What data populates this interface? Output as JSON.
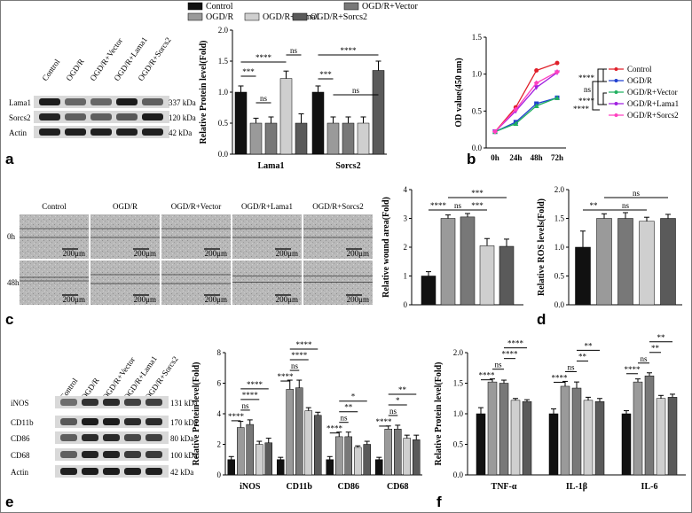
{
  "panel_labels": {
    "a": "a",
    "b": "b",
    "c": "c",
    "d": "d",
    "e": "e",
    "f": "f"
  },
  "conditions": [
    "Control",
    "OGD/R",
    "OGD/R+Vector",
    "OGD/R+Lama1",
    "OGD/R+Sorcs2"
  ],
  "legend_a": [
    "Control",
    "OGD/R",
    "OGD/R+Lama1",
    "OGD/R+Sorcs2",
    "OGD/R+Vector"
  ],
  "blot_a": {
    "rows": [
      {
        "name": "Lama1",
        "kda": "337 kDa"
      },
      {
        "name": "Sorcs2",
        "kda": "120 kDa"
      },
      {
        "name": "Actin",
        "kda": "42 kDa"
      }
    ]
  },
  "blot_e": {
    "rows": [
      {
        "name": "iNOS",
        "kda": "131 kDa"
      },
      {
        "name": "CD11b",
        "kda": "170 kDa"
      },
      {
        "name": "CD86",
        "kda": "80 kDa"
      },
      {
        "name": "CD68",
        "kda": "100 kDa"
      },
      {
        "name": "Actin",
        "kda": "42 kDa"
      }
    ]
  },
  "scratch": {
    "columns": [
      "Control",
      "OGD/R",
      "OGD/R+Vector",
      "OGD/R+Lama1",
      "OGD/R+Sorcs2"
    ],
    "rows": [
      "0h",
      "48h"
    ],
    "scale": "200μm"
  },
  "colors": {
    "c0": "#111111",
    "c1": "#9a9a9a",
    "c2": "#787878",
    "c3": "#cfcfcf",
    "c4": "#5a5a5a",
    "line_red": "#e0202a",
    "line_blue": "#2040d0",
    "line_green": "#20b060",
    "line_purple": "#a020e0",
    "line_pink": "#ff40c0"
  },
  "chart_data": [
    {
      "id": "a",
      "type": "bar",
      "ylabel": "Relative Protein level(Fold)",
      "ylim": [
        0,
        2.0
      ],
      "yticks": [
        "0.0",
        "0.5",
        "1.0",
        "1.5",
        "2.0"
      ],
      "categories": [
        "Lama1",
        "Sorcs2"
      ],
      "series": [
        {
          "name": "Control",
          "values": [
            1.0,
            1.0
          ],
          "err": [
            0.1,
            0.1
          ]
        },
        {
          "name": "OGD/R",
          "values": [
            0.5,
            0.5
          ],
          "err": [
            0.08,
            0.1
          ]
        },
        {
          "name": "OGD/R+Vector",
          "values": [
            0.5,
            0.5
          ],
          "err": [
            0.1,
            0.1
          ]
        },
        {
          "name": "OGD/R+Lama1",
          "values": [
            1.22,
            0.5
          ],
          "err": [
            0.12,
            0.1
          ]
        },
        {
          "name": "OGD/R+Sorcs2",
          "values": [
            0.5,
            1.35
          ],
          "err": [
            0.15,
            0.15
          ]
        }
      ],
      "sig": [
        "***",
        "****",
        "ns",
        "ns",
        "***",
        "****",
        "ns"
      ]
    },
    {
      "id": "b",
      "type": "line",
      "ylabel": "OD value(450 nm)",
      "ylim": [
        0,
        1.5
      ],
      "yticks": [
        "0.0",
        "0.5",
        "1.0",
        "1.5"
      ],
      "categories": [
        "0h",
        "24h",
        "48h",
        "72h"
      ],
      "series": [
        {
          "name": "Control",
          "values": [
            0.22,
            0.55,
            1.05,
            1.15
          ]
        },
        {
          "name": "OGD/R",
          "values": [
            0.22,
            0.35,
            0.6,
            0.68
          ]
        },
        {
          "name": "OGD/R+Vector",
          "values": [
            0.22,
            0.33,
            0.57,
            0.68
          ]
        },
        {
          "name": "OGD/R+Lama1",
          "values": [
            0.22,
            0.5,
            0.82,
            1.02
          ]
        },
        {
          "name": "OGD/R+Sorcs2",
          "values": [
            0.22,
            0.52,
            0.88,
            1.03
          ]
        }
      ],
      "sig": [
        "****",
        "ns",
        "****",
        "****"
      ]
    },
    {
      "id": "c",
      "type": "bar",
      "ylabel": "Relative wound area(Fold)",
      "ylim": [
        0,
        4
      ],
      "yticks": [
        "0",
        "1",
        "2",
        "3",
        "4"
      ],
      "categories": [
        ""
      ],
      "series": [
        {
          "name": "Control",
          "values": [
            1.0
          ],
          "err": [
            0.15
          ]
        },
        {
          "name": "OGD/R",
          "values": [
            3.0
          ],
          "err": [
            0.12
          ]
        },
        {
          "name": "OGD/R+Vector",
          "values": [
            3.05
          ],
          "err": [
            0.12
          ]
        },
        {
          "name": "OGD/R+Lama1",
          "values": [
            2.05
          ],
          "err": [
            0.25
          ]
        },
        {
          "name": "OGD/R+Sorcs2",
          "values": [
            2.03
          ],
          "err": [
            0.25
          ]
        }
      ],
      "sig": [
        "****",
        "ns",
        "***",
        "***"
      ]
    },
    {
      "id": "d",
      "type": "bar",
      "ylabel": "Relative ROS levels(Fold)",
      "ylim": [
        0,
        2.0
      ],
      "yticks": [
        "0.0",
        "0.5",
        "1.0",
        "1.5",
        "2.0"
      ],
      "categories": [
        ""
      ],
      "series": [
        {
          "name": "Control",
          "values": [
            1.0
          ],
          "err": [
            0.28
          ]
        },
        {
          "name": "OGD/R",
          "values": [
            1.5
          ],
          "err": [
            0.08
          ]
        },
        {
          "name": "OGD/R+Vector",
          "values": [
            1.5
          ],
          "err": [
            0.1
          ]
        },
        {
          "name": "OGD/R+Lama1",
          "values": [
            1.45
          ],
          "err": [
            0.07
          ]
        },
        {
          "name": "OGD/R+Sorcs2",
          "values": [
            1.5
          ],
          "err": [
            0.07
          ]
        }
      ],
      "sig": [
        "**",
        "ns",
        "ns"
      ]
    },
    {
      "id": "e",
      "type": "bar",
      "ylabel": "Relative Protein level(Fold)",
      "ylim": [
        0,
        8
      ],
      "yticks": [
        "0",
        "2",
        "4",
        "6",
        "8"
      ],
      "categories": [
        "iNOS",
        "CD11b",
        "CD86",
        "CD68"
      ],
      "series": [
        {
          "name": "Control",
          "values": [
            1.0,
            1.0,
            1.0,
            1.0
          ],
          "err": [
            0.2,
            0.15,
            0.2,
            0.15
          ]
        },
        {
          "name": "OGD/R",
          "values": [
            3.1,
            5.6,
            2.5,
            3.0
          ],
          "err": [
            0.4,
            0.6,
            0.3,
            0.2
          ]
        },
        {
          "name": "OGD/R+Vector",
          "values": [
            3.3,
            5.7,
            2.5,
            3.0
          ],
          "err": [
            0.3,
            0.5,
            0.3,
            0.25
          ]
        },
        {
          "name": "OGD/R+Lama1",
          "values": [
            2.0,
            4.2,
            1.8,
            2.4
          ],
          "err": [
            0.2,
            0.2,
            0.1,
            0.2
          ]
        },
        {
          "name": "OGD/R+Sorcs2",
          "values": [
            2.1,
            3.9,
            2.0,
            2.3
          ],
          "err": [
            0.3,
            0.2,
            0.2,
            0.3
          ]
        }
      ],
      "sig": [
        "****",
        "ns",
        "****",
        "****",
        "****",
        "ns",
        "****",
        "****",
        "****",
        "ns",
        "**",
        "*",
        "****",
        "ns",
        "*",
        "**"
      ]
    },
    {
      "id": "f",
      "type": "bar",
      "ylabel": "Relative Protein level(Fold)",
      "ylim": [
        0,
        2.0
      ],
      "yticks": [
        "0.0",
        "0.5",
        "1.0",
        "1.5",
        "2.0"
      ],
      "categories": [
        "TNF-α",
        "IL-1β",
        "IL-6"
      ],
      "series": [
        {
          "name": "Control",
          "values": [
            1.0,
            1.0,
            1.0
          ],
          "err": [
            0.1,
            0.08,
            0.05
          ]
        },
        {
          "name": "OGD/R",
          "values": [
            1.52,
            1.45,
            1.52
          ],
          "err": [
            0.05,
            0.08,
            0.05
          ]
        },
        {
          "name": "OGD/R+Vector",
          "values": [
            1.5,
            1.42,
            1.62
          ],
          "err": [
            0.05,
            0.1,
            0.05
          ]
        },
        {
          "name": "OGD/R+Lama1",
          "values": [
            1.22,
            1.22,
            1.25
          ],
          "err": [
            0.03,
            0.05,
            0.05
          ]
        },
        {
          "name": "OGD/R+Sorcs2",
          "values": [
            1.2,
            1.2,
            1.27
          ],
          "err": [
            0.03,
            0.05,
            0.05
          ]
        }
      ],
      "sig": [
        "****",
        "ns",
        "****",
        "****",
        "****",
        "ns",
        "**",
        "**",
        "****",
        "ns",
        "**",
        "**"
      ]
    }
  ]
}
